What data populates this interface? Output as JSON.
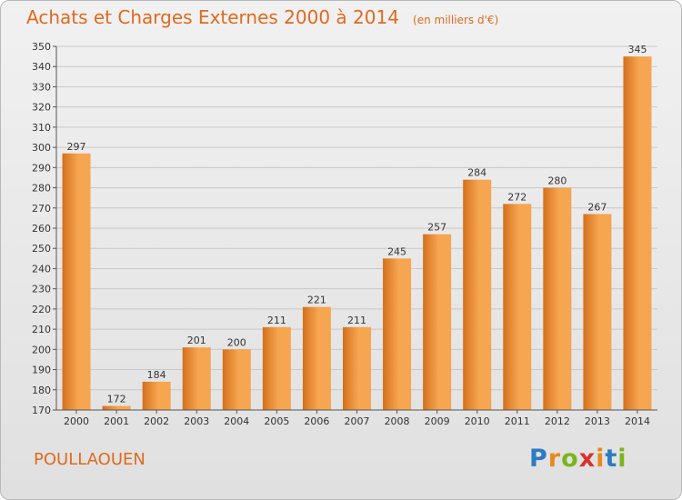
{
  "title": "Achats et Charges Externes 2000 à 2014",
  "subtitle": "(en milliers d'€)",
  "town": "POULLAOUEN",
  "brand": {
    "letters": [
      "P",
      "r",
      "o",
      "x",
      "i",
      "t",
      "i"
    ],
    "letter_colors": [
      "#2e7bc4",
      "#e8891f",
      "#7ab51d",
      "#d9322e",
      "#e8891f",
      "#2e7bc4",
      "#7ab51d"
    ]
  },
  "colors": {
    "accent": "#e06a1e",
    "bar_light": "#f6a550",
    "bar_dark": "#d4701c",
    "grid": "#c8c8c8",
    "axis": "#555555"
  },
  "chart_data": {
    "type": "bar",
    "categories": [
      "2000",
      "2001",
      "2002",
      "2003",
      "2004",
      "2005",
      "2006",
      "2007",
      "2008",
      "2009",
      "2010",
      "2011",
      "2012",
      "2013",
      "2014"
    ],
    "values": [
      297,
      172,
      184,
      201,
      200,
      211,
      221,
      211,
      245,
      257,
      284,
      272,
      280,
      267,
      345
    ],
    "ylim": [
      170,
      350
    ],
    "ytick_step": 10,
    "grid": true,
    "xlabel": "",
    "ylabel": ""
  }
}
